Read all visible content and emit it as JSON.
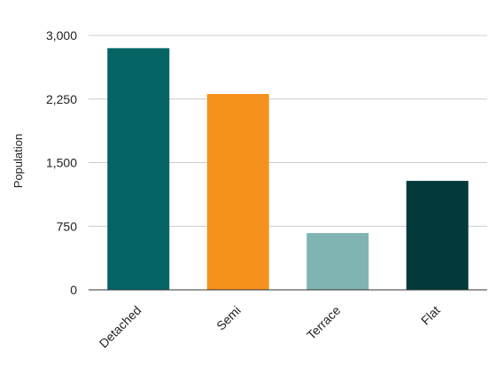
{
  "chart_data": {
    "type": "bar",
    "categories": [
      "Detached",
      "Semi",
      "Terrace",
      "Flat"
    ],
    "values": [
      2850,
      2310,
      670,
      1285
    ],
    "colors": [
      "#046464",
      "#f5921e",
      "#80b4b2",
      "#023a3a"
    ],
    "xlabel": "",
    "ylabel": "Population",
    "ylim": [
      0,
      3000
    ],
    "yticks": [
      0,
      750,
      1500,
      2250,
      3000
    ],
    "ytick_labels": [
      "0",
      "750",
      "1,500",
      "2,250",
      "3,000"
    ],
    "grid": true,
    "legend": "none"
  }
}
